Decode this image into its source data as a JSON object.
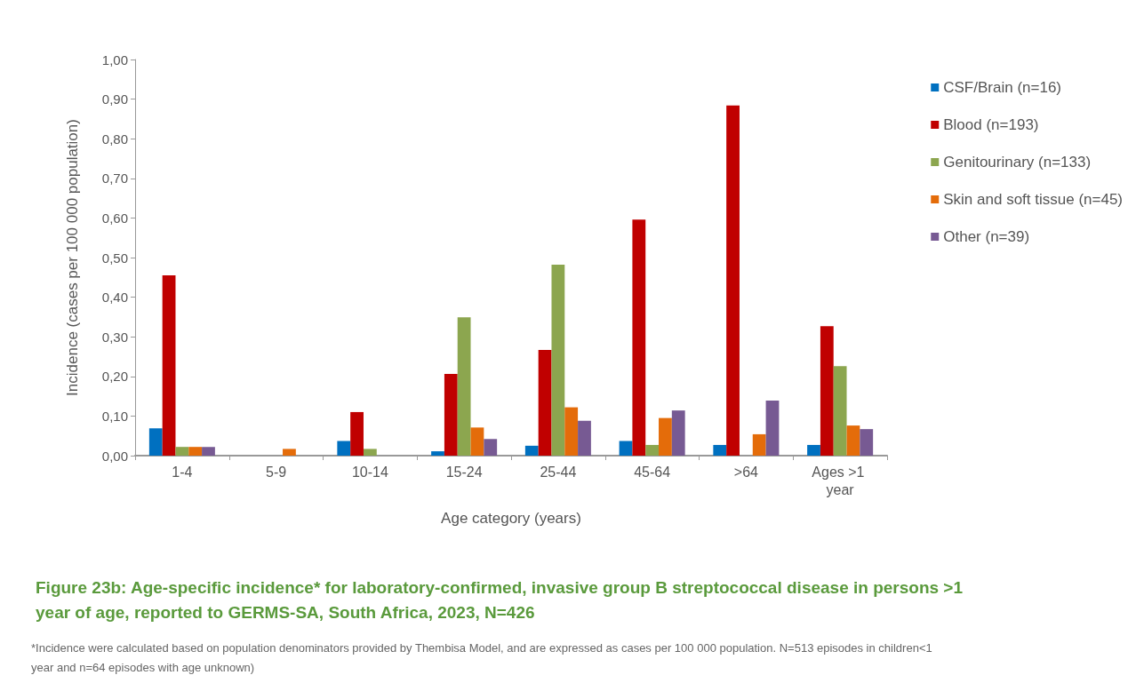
{
  "chart_data": {
    "type": "bar",
    "title": "Figure 23b: Age-specific incidence* for laboratory-confirmed, invasive group B streptococcal disease in persons >1 year of age, reported to GERMS-SA, South Africa, 2023, N=426",
    "xlabel": "Age category (years)",
    "ylabel": "Incidence (cases per 100 000 population)",
    "annotations": [
      "*Incidence were calculated based on population denominators provided by Thembisa Model, and are expressed as cases per 100 000 population. N=513 episodes in children<1 year and n=64 episodes with age unknown)"
    ],
    "categories": [
      "1-4",
      "5-9",
      "10-14",
      "15-24",
      "25-44",
      "45-64",
      ">64",
      "Ages >1 year"
    ],
    "series": [
      {
        "name": "CSF/Brain (n=16)",
        "color": "#0070c0",
        "values": [
          0.069,
          0,
          0.037,
          0.011,
          0.025,
          0.037,
          0.027,
          0.027
        ]
      },
      {
        "name": "Blood (n=193)",
        "color": "#c00000",
        "values": [
          0.455,
          0,
          0.11,
          0.206,
          0.267,
          0.596,
          0.884,
          0.327
        ]
      },
      {
        "name": "Genitourinary (n=133)",
        "color": "#8ca64f",
        "values": [
          0.022,
          0,
          0.017,
          0.349,
          0.482,
          0.027,
          0,
          0.226
        ]
      },
      {
        "name": "Skin and soft tissue (n=45)",
        "color": "#e46c0a",
        "values": [
          0.022,
          0.017,
          0,
          0.071,
          0.122,
          0.095,
          0.054,
          0.076
        ]
      },
      {
        "name": "Other (n=39)",
        "color": "#775a93",
        "values": [
          0.022,
          0,
          0,
          0.042,
          0.088,
          0.114,
          0.139,
          0.067
        ]
      }
    ],
    "ylim": [
      0,
      1
    ],
    "yticks": [
      {
        "value": 0,
        "label": "0,00"
      },
      {
        "value": 0.1,
        "label": "0,10"
      },
      {
        "value": 0.2,
        "label": "0,20"
      },
      {
        "value": 0.3,
        "label": "0,30"
      },
      {
        "value": 0.4,
        "label": "0,40"
      },
      {
        "value": 0.5,
        "label": "0,50"
      },
      {
        "value": 0.6,
        "label": "0,60"
      },
      {
        "value": 0.7,
        "label": "0,70"
      },
      {
        "value": 0.8,
        "label": "0,80"
      },
      {
        "value": 0.9,
        "label": "0,90"
      },
      {
        "value": 1,
        "label": "1,00"
      }
    ],
    "grid": false,
    "legend": "right"
  }
}
